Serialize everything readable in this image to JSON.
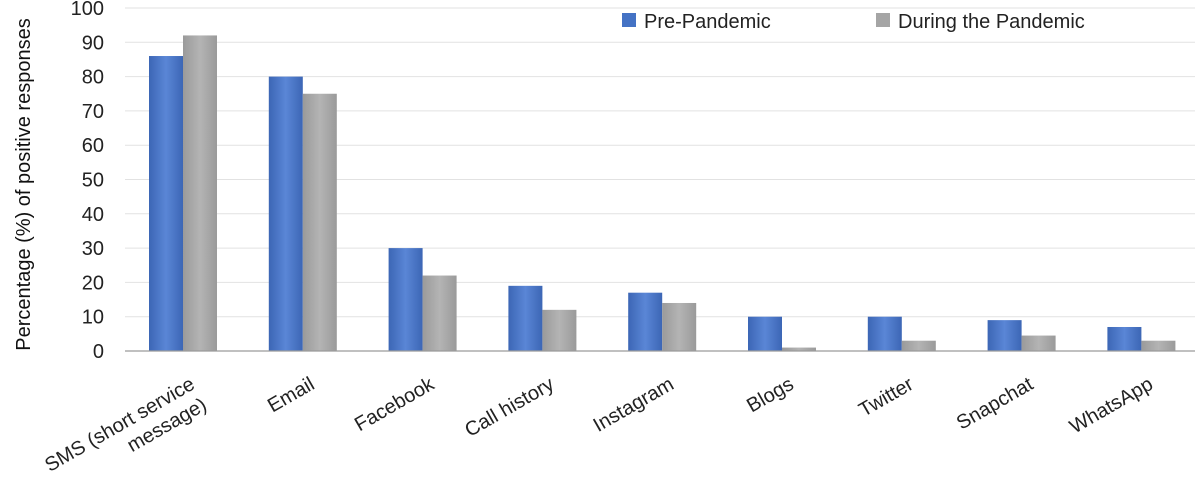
{
  "chart_data": {
    "type": "bar",
    "title": "",
    "xlabel": "",
    "ylabel": "Percentage (%) of positive responses",
    "ylim": [
      0,
      100
    ],
    "yticks": [
      0,
      10,
      20,
      30,
      40,
      50,
      60,
      70,
      80,
      90,
      100
    ],
    "grid": true,
    "legend_position": "top-right",
    "categories": [
      [
        "SMS (short service",
        "message)"
      ],
      [
        "Email"
      ],
      [
        "Facebook"
      ],
      [
        "Call history"
      ],
      [
        "Instagram"
      ],
      [
        "Blogs"
      ],
      [
        "Twitter"
      ],
      [
        "Snapchat"
      ],
      [
        "WhatsApp"
      ]
    ],
    "series": [
      {
        "name": "Pre-Pandemic",
        "color": "#4472C4",
        "values": [
          86,
          80,
          30,
          19,
          17,
          10,
          10,
          9,
          7
        ]
      },
      {
        "name": "During the Pandemic",
        "color": "#A5A5A5",
        "values": [
          92,
          75,
          22,
          12,
          14,
          1,
          3,
          4.5,
          3
        ]
      }
    ]
  }
}
